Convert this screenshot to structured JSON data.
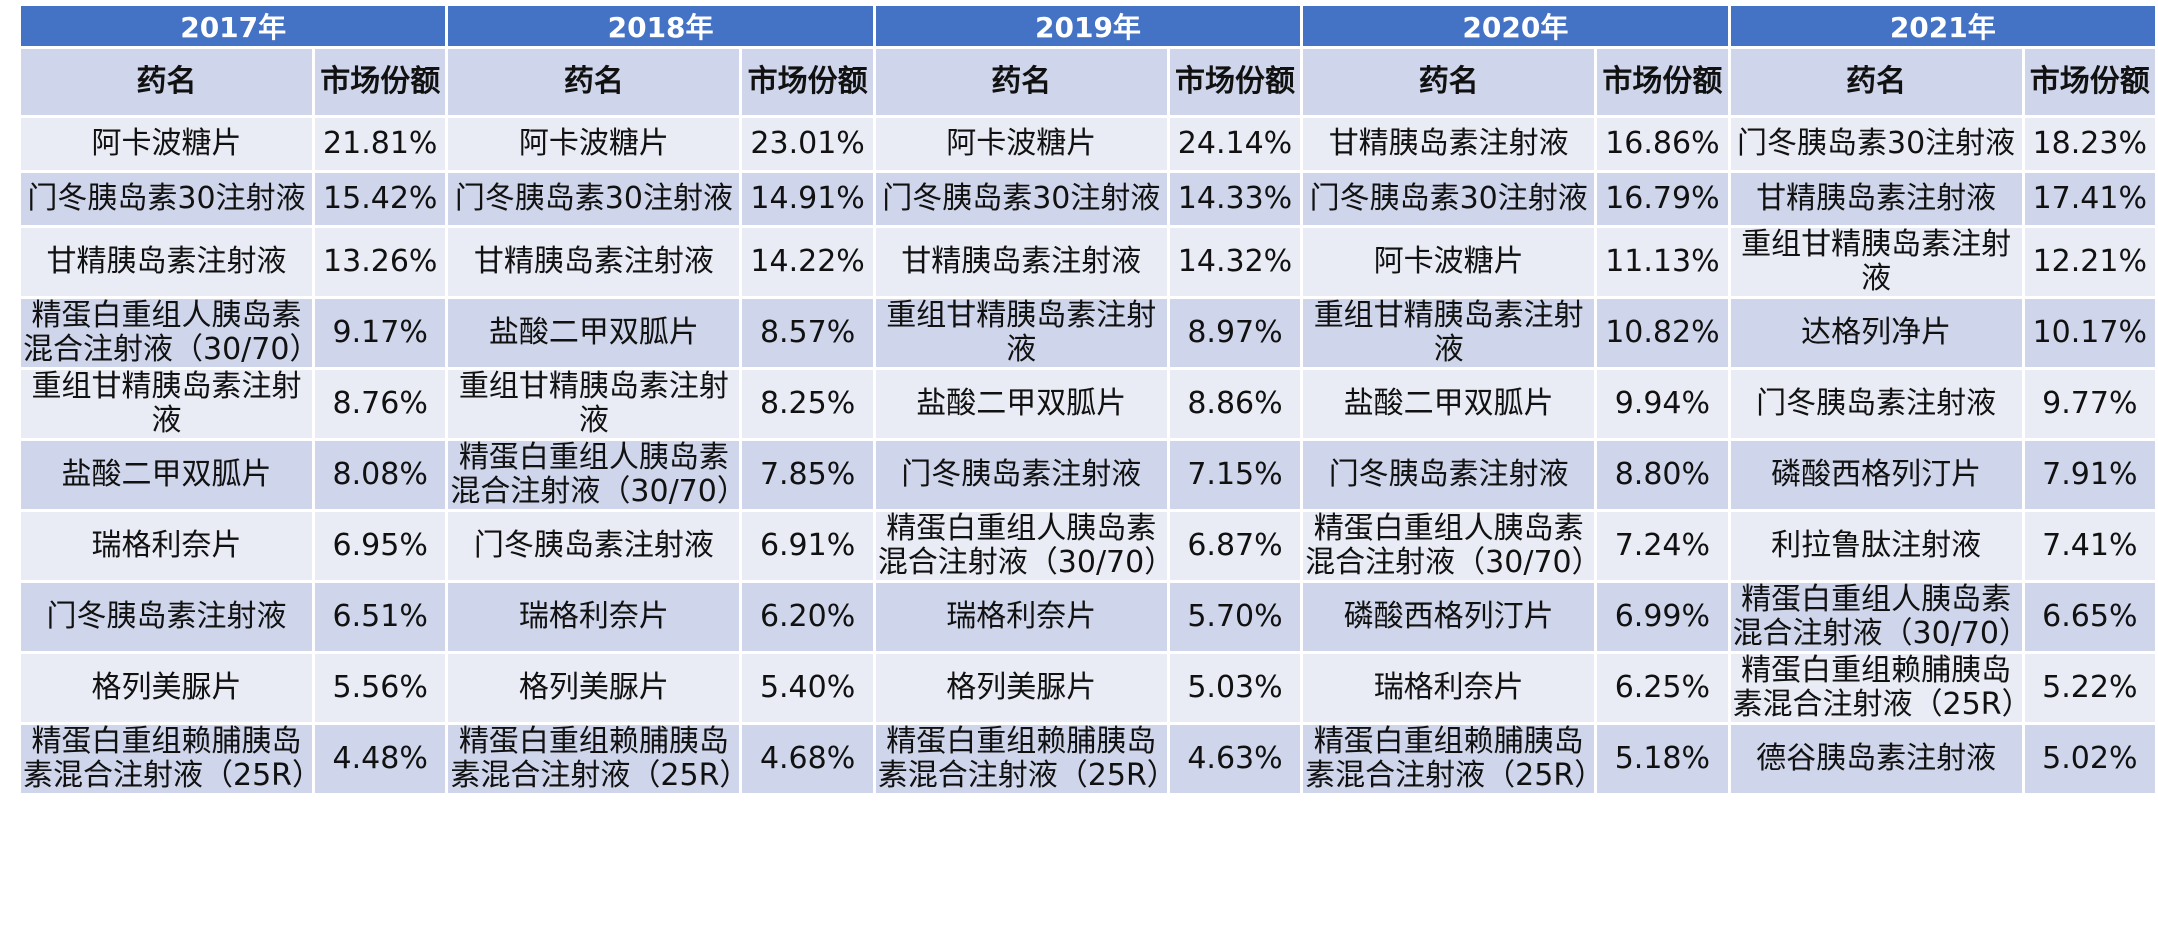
{
  "years": [
    "2017年",
    "2018年",
    "2019年",
    "2020年",
    "2021年"
  ],
  "col_drug": "药名",
  "col_share": "市场份额",
  "rows": [
    [
      [
        "阿卡波糖片",
        "21.81%"
      ],
      [
        "阿卡波糖片",
        "23.01%"
      ],
      [
        "阿卡波糖片",
        "24.14%"
      ],
      [
        "甘精胰岛素注射液",
        "16.86%"
      ],
      [
        "门冬胰岛素30注射液",
        "18.23%"
      ]
    ],
    [
      [
        "门冬胰岛素30注射液",
        "15.42%"
      ],
      [
        "门冬胰岛素30注射液",
        "14.91%"
      ],
      [
        "门冬胰岛素30注射液",
        "14.33%"
      ],
      [
        "门冬胰岛素30注射液",
        "16.79%"
      ],
      [
        "甘精胰岛素注射液",
        "17.41%"
      ]
    ],
    [
      [
        "甘精胰岛素注射液",
        "13.26%"
      ],
      [
        "甘精胰岛素注射液",
        "14.22%"
      ],
      [
        "甘精胰岛素注射液",
        "14.32%"
      ],
      [
        "阿卡波糖片",
        "11.13%"
      ],
      [
        "重组甘精胰岛素注射液",
        "12.21%"
      ]
    ],
    [
      [
        "精蛋白重组人胰岛素混合注射液（30/70）",
        "9.17%"
      ],
      [
        "盐酸二甲双胍片",
        "8.57%"
      ],
      [
        "重组甘精胰岛素注射液",
        "8.97%"
      ],
      [
        "重组甘精胰岛素注射液",
        "10.82%"
      ],
      [
        "达格列净片",
        "10.17%"
      ]
    ],
    [
      [
        "重组甘精胰岛素注射液",
        "8.76%"
      ],
      [
        "重组甘精胰岛素注射液",
        "8.25%"
      ],
      [
        "盐酸二甲双胍片",
        "8.86%"
      ],
      [
        "盐酸二甲双胍片",
        "9.94%"
      ],
      [
        "门冬胰岛素注射液",
        "9.77%"
      ]
    ],
    [
      [
        "盐酸二甲双胍片",
        "8.08%"
      ],
      [
        "精蛋白重组人胰岛素混合注射液（30/70）",
        "7.85%"
      ],
      [
        "门冬胰岛素注射液",
        "7.15%"
      ],
      [
        "门冬胰岛素注射液",
        "8.80%"
      ],
      [
        "磷酸西格列汀片",
        "7.91%"
      ]
    ],
    [
      [
        "瑞格利奈片",
        "6.95%"
      ],
      [
        "门冬胰岛素注射液",
        "6.91%"
      ],
      [
        "精蛋白重组人胰岛素混合注射液（30/70）",
        "6.87%"
      ],
      [
        "精蛋白重组人胰岛素混合注射液（30/70）",
        "7.24%"
      ],
      [
        "利拉鲁肽注射液",
        "7.41%"
      ]
    ],
    [
      [
        "门冬胰岛素注射液",
        "6.51%"
      ],
      [
        "瑞格利奈片",
        "6.20%"
      ],
      [
        "瑞格利奈片",
        "5.70%"
      ],
      [
        "磷酸西格列汀片",
        "6.99%"
      ],
      [
        "精蛋白重组人胰岛素混合注射液（30/70）",
        "6.65%"
      ]
    ],
    [
      [
        "格列美脲片",
        "5.56%"
      ],
      [
        "格列美脲片",
        "5.40%"
      ],
      [
        "格列美脲片",
        "5.03%"
      ],
      [
        "瑞格利奈片",
        "6.25%"
      ],
      [
        "精蛋白重组赖脯胰岛素混合注射液（25R）",
        "5.22%"
      ]
    ],
    [
      [
        "精蛋白重组赖脯胰岛素混合注射液（25R）",
        "4.48%"
      ],
      [
        "精蛋白重组赖脯胰岛素混合注射液（25R）",
        "4.68%"
      ],
      [
        "精蛋白重组赖脯胰岛素混合注射液（25R）",
        "4.63%"
      ],
      [
        "精蛋白重组赖脯胰岛素混合注射液（25R）",
        "5.18%"
      ],
      [
        "德谷胰岛素注射液",
        "5.02%"
      ]
    ]
  ]
}
